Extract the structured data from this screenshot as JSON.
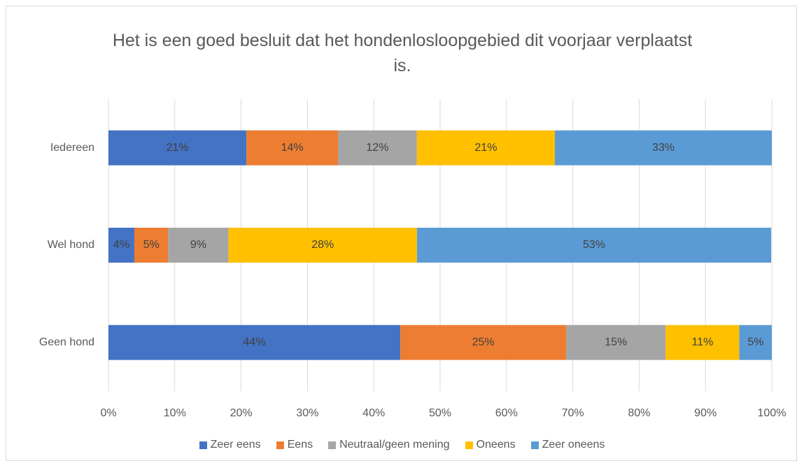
{
  "chart_data": {
    "type": "stacked-bar-horizontal",
    "title": "Het is een goed besluit dat het hondenlosloopgebied dit voorjaar verplaatst is.",
    "categories": [
      "Iedereen",
      "Wel hond",
      "Geen hond"
    ],
    "series": [
      {
        "name": "Zeer eens",
        "color": "#4472c4",
        "values": [
          20.8,
          3.9,
          44.0
        ],
        "value_labels": [
          "21%",
          "4%",
          "44%"
        ]
      },
      {
        "name": "Eens",
        "color": "#ed7d31",
        "values": [
          13.8,
          5.1,
          25.0
        ],
        "value_labels": [
          "14%",
          "5%",
          "25%"
        ]
      },
      {
        "name": "Neutraal/geen mening",
        "color": "#a5a5a5",
        "values": [
          11.9,
          9.1,
          15.0
        ],
        "value_labels": [
          "12%",
          "9%",
          "15%"
        ]
      },
      {
        "name": "Oneens",
        "color": "#ffc000",
        "values": [
          20.8,
          28.4,
          11.1
        ],
        "value_labels": [
          "21%",
          "28%",
          "11%"
        ]
      },
      {
        "name": "Zeer oneens",
        "color": "#5b9bd5",
        "values": [
          32.7,
          53.4,
          4.9
        ],
        "value_labels": [
          "33%",
          "53%",
          "5%"
        ]
      }
    ],
    "xlim": [
      0,
      100
    ],
    "xticks": [
      {
        "value": 0,
        "label": "0%"
      },
      {
        "value": 10,
        "label": "10%"
      },
      {
        "value": 20,
        "label": "20%"
      },
      {
        "value": 30,
        "label": "30%"
      },
      {
        "value": 40,
        "label": "40%"
      },
      {
        "value": 50,
        "label": "50%"
      },
      {
        "value": 60,
        "label": "60%"
      },
      {
        "value": 70,
        "label": "70%"
      },
      {
        "value": 80,
        "label": "80%"
      },
      {
        "value": 90,
        "label": "90%"
      },
      {
        "value": 100,
        "label": "100%"
      }
    ],
    "grid": true,
    "legend": "bottom"
  }
}
